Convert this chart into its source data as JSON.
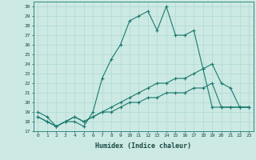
{
  "title": "",
  "xlabel": "Humidex (Indice chaleur)",
  "bg_color": "#cce9e4",
  "grid_color": "#b0d8d2",
  "line_color": "#1a7a6e",
  "xlim": [
    -0.5,
    23.5
  ],
  "ylim": [
    17,
    30.5
  ],
  "yticks": [
    17,
    18,
    19,
    20,
    21,
    22,
    23,
    24,
    25,
    26,
    27,
    28,
    29,
    30
  ],
  "xticks": [
    0,
    1,
    2,
    3,
    4,
    5,
    6,
    7,
    8,
    9,
    10,
    11,
    12,
    13,
    14,
    15,
    16,
    17,
    18,
    19,
    20,
    21,
    22,
    23
  ],
  "series1_x": [
    0,
    1,
    2,
    3,
    4,
    5,
    6,
    7,
    8,
    9,
    10,
    11,
    12,
    13,
    14,
    15,
    16,
    17,
    18,
    19,
    20,
    21,
    22,
    23
  ],
  "series1_y": [
    19.0,
    18.5,
    17.5,
    18.0,
    18.0,
    17.5,
    19.0,
    22.5,
    24.5,
    26.0,
    28.5,
    29.0,
    29.5,
    27.5,
    30.0,
    27.0,
    27.0,
    27.5,
    23.5,
    19.5,
    19.5,
    19.5,
    19.5,
    19.5
  ],
  "series2_x": [
    0,
    1,
    2,
    3,
    4,
    5,
    6,
    7,
    8,
    9,
    10,
    11,
    12,
    13,
    14,
    15,
    16,
    17,
    18,
    19,
    20,
    21,
    22,
    23
  ],
  "series2_y": [
    18.5,
    18.0,
    17.5,
    18.0,
    18.5,
    18.0,
    18.5,
    19.0,
    19.5,
    20.0,
    20.5,
    21.0,
    21.5,
    22.0,
    22.0,
    22.5,
    22.5,
    23.0,
    23.5,
    24.0,
    22.0,
    21.5,
    19.5,
    19.5
  ],
  "series3_x": [
    0,
    1,
    2,
    3,
    4,
    5,
    6,
    7,
    8,
    9,
    10,
    11,
    12,
    13,
    14,
    15,
    16,
    17,
    18,
    19,
    20,
    21,
    22,
    23
  ],
  "series3_y": [
    18.5,
    18.0,
    17.5,
    18.0,
    18.5,
    18.0,
    18.5,
    19.0,
    19.0,
    19.5,
    20.0,
    20.0,
    20.5,
    20.5,
    21.0,
    21.0,
    21.0,
    21.5,
    21.5,
    22.0,
    19.5,
    19.5,
    19.5,
    19.5
  ]
}
